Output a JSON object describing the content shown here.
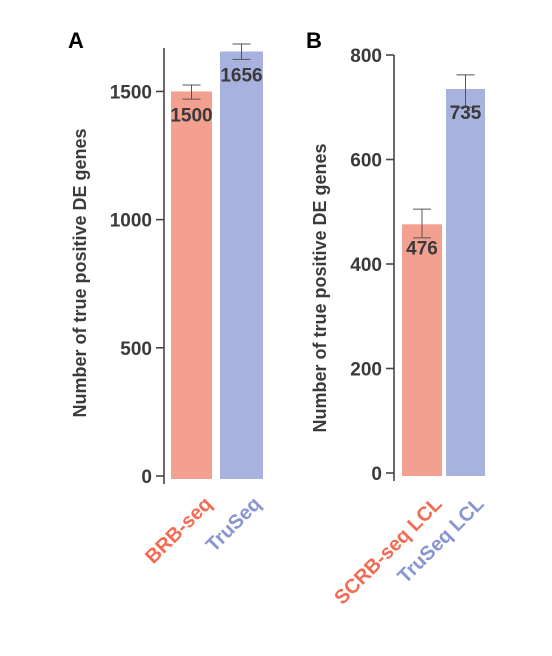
{
  "chart_data": [
    {
      "panel": "A",
      "type": "bar",
      "ylabel": "Number of true positive DE genes",
      "ylim": [
        0,
        1650
      ],
      "yticks": [
        0,
        500,
        1000,
        1500
      ],
      "grid": false,
      "categories": [
        "BRB-seq",
        "TruSeq"
      ],
      "values": [
        1500,
        1656
      ],
      "data_labels": [
        "1500",
        "1656"
      ],
      "error": [
        [
          1470,
          1525
        ],
        [
          1625,
          1685
        ]
      ],
      "colors": [
        "#f4a090",
        "#a7b3de"
      ],
      "label_colors": [
        "#f26b52",
        "#8795d2"
      ]
    },
    {
      "panel": "B",
      "type": "bar",
      "ylabel": "Number of true positive DE genes",
      "ylim": [
        0,
        800
      ],
      "yticks": [
        0,
        200,
        400,
        600,
        800
      ],
      "grid": false,
      "categories": [
        "SCRB-seq LCL",
        "TruSeq LCL"
      ],
      "values": [
        476,
        735
      ],
      "data_labels": [
        "476",
        "735"
      ],
      "error": [
        [
          450,
          505
        ],
        [
          700,
          762
        ]
      ],
      "colors": [
        "#f4a090",
        "#a7b3de"
      ],
      "label_colors": [
        "#f26b52",
        "#8795d2"
      ]
    }
  ]
}
